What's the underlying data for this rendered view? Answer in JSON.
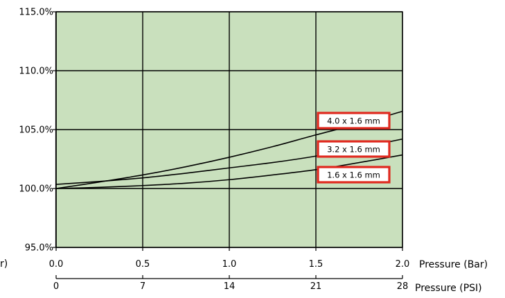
{
  "colors": {
    "plot_background": "#c9e0bd",
    "grid_line": "#000000",
    "curve": "#000000",
    "callout_border": "#e0281e",
    "callout_fill": "#ffffff"
  },
  "chart_data": {
    "type": "line",
    "title": "",
    "grid": true,
    "ylim": [
      95,
      115
    ],
    "y_ticks": [
      "95.0%",
      "100.0%",
      "105.0%",
      "110.0%",
      "115.0%"
    ],
    "x_axes": [
      {
        "label": "Pressure (Bar)",
        "ticks": [
          "0.0",
          "0.5",
          "1.0",
          "1.5",
          "2.0"
        ],
        "left_cut_text": "r)"
      },
      {
        "label": "Pressure (PSI)",
        "ticks": [
          "0",
          "7",
          "14",
          "21",
          "28"
        ]
      }
    ],
    "xlim": [
      0,
      2
    ],
    "series": [
      {
        "name": "4.0 x 1.6 mm",
        "x": [
          0,
          0.25,
          0.5,
          0.75,
          1.0,
          1.25,
          1.5,
          1.75,
          2.0
        ],
        "y": [
          100.0,
          100.55,
          101.15,
          101.85,
          102.65,
          103.55,
          104.55,
          105.5,
          106.55
        ]
      },
      {
        "name": "3.2 x 1.6 mm",
        "x": [
          0,
          0.25,
          0.5,
          0.75,
          1.0,
          1.25,
          1.5,
          1.75,
          2.0
        ],
        "y": [
          100.35,
          100.6,
          100.9,
          101.3,
          101.75,
          102.2,
          102.75,
          103.45,
          104.2
        ]
      },
      {
        "name": "1.6 x 1.6 mm",
        "x": [
          0,
          0.25,
          0.5,
          0.75,
          1.0,
          1.25,
          1.5,
          1.75,
          2.0
        ],
        "y": [
          100.0,
          100.1,
          100.25,
          100.45,
          100.75,
          101.15,
          101.6,
          102.2,
          102.85
        ]
      }
    ]
  }
}
